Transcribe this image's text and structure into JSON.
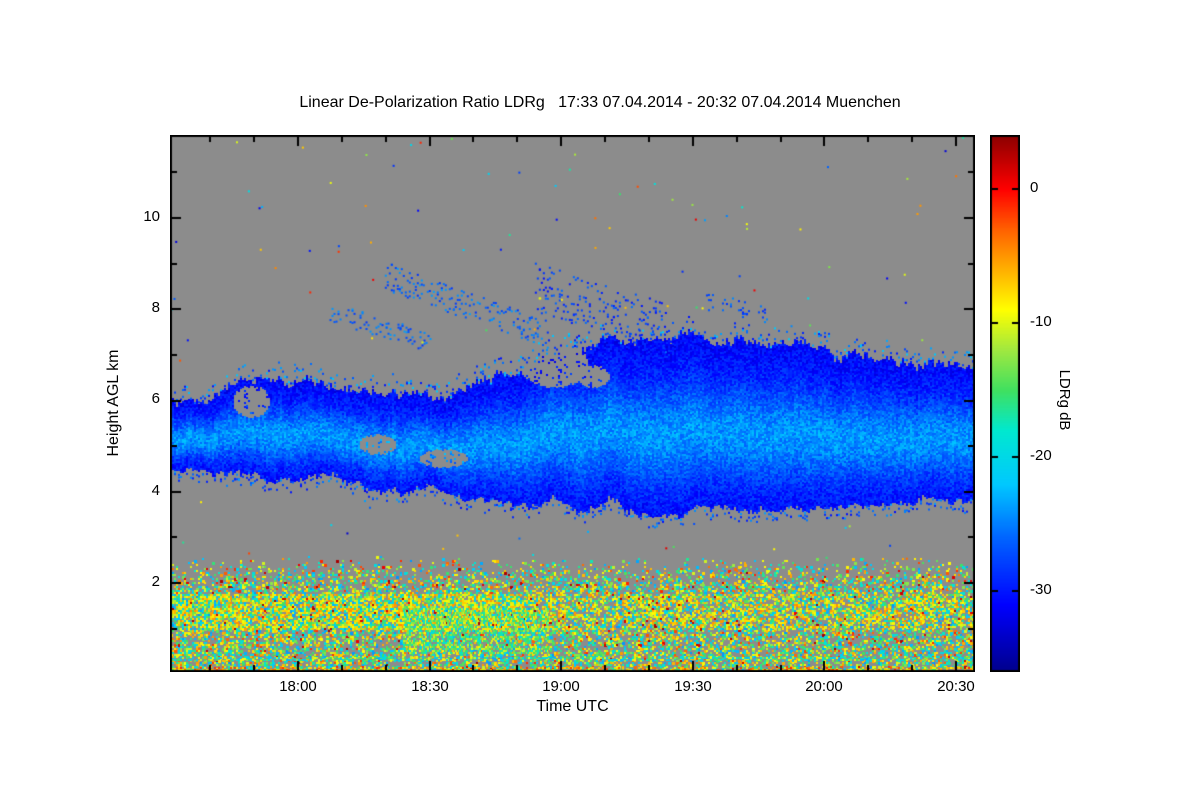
{
  "title": "Linear De-Polarization Ratio LDRg   17:33 07.04.2014 - 20:32 07.04.2014 Muenchen",
  "axes": {
    "x_label": "Time UTC",
    "y_label": "Height AGL km",
    "x_tick_labels": [
      "18:00",
      "18:30",
      "19:00",
      "19:30",
      "20:00",
      "20:30"
    ],
    "y_tick_labels": [
      "2",
      "4",
      "6",
      "8",
      "10"
    ]
  },
  "colorbar": {
    "label": "LDRg dB",
    "tick_labels": [
      "0",
      "-10",
      "-20",
      "-30"
    ]
  },
  "chart_data": {
    "type": "heatmap",
    "title": "Linear De-Polarization Ratio LDRg",
    "station": "Muenchen",
    "time_start": "17:33 07.04.2014",
    "time_end": "20:32 07.04.2014",
    "x_axis": {
      "label": "Time UTC",
      "tick_hours": [
        18.0,
        18.5,
        19.0,
        19.5,
        20.0,
        20.5
      ],
      "tick_labels": [
        "18:00",
        "18:30",
        "19:00",
        "19:30",
        "20:00",
        "20:30"
      ],
      "domain_hours": [
        17.514,
        20.572
      ]
    },
    "y_axis": {
      "label": "Height AGL km",
      "ticks": [
        2,
        4,
        6,
        8,
        10
      ],
      "range_km": [
        0.05,
        11.82
      ]
    },
    "value_axis": {
      "label": "LDRg dB",
      "ticks": [
        0,
        -10,
        -20,
        -30
      ],
      "range_db": [
        -36,
        4
      ]
    },
    "no_data_color": "#8c8c8c",
    "colormap": [
      {
        "v": -36,
        "color": "#00008b"
      },
      {
        "v": -31,
        "color": "#0000ff"
      },
      {
        "v": -26,
        "color": "#0064ff"
      },
      {
        "v": -22,
        "color": "#00c8ff"
      },
      {
        "v": -18,
        "color": "#00e8d0"
      },
      {
        "v": -15,
        "color": "#40e060"
      },
      {
        "v": -12,
        "color": "#a0e840"
      },
      {
        "v": -9,
        "color": "#ffff00"
      },
      {
        "v": -6,
        "color": "#ffb000"
      },
      {
        "v": -3,
        "color": "#ff6000"
      },
      {
        "v": 0,
        "color": "#ff0000"
      },
      {
        "v": 4,
        "color": "#8b0000"
      }
    ],
    "features": {
      "cloud_band": {
        "description": "Mid-level ice cloud layer between ~3.7 and ~7.5 km, LDRg about -24 to -33 dB (blue)",
        "ldr_mean_db": -28,
        "points": [
          {
            "t": 17.51,
            "base": 4.5,
            "top": 5.9
          },
          {
            "t": 17.7,
            "base": 4.35,
            "top": 6.35
          },
          {
            "t": 17.85,
            "base": 4.3,
            "top": 6.9
          },
          {
            "t": 18.05,
            "base": 4.2,
            "top": 6.6
          },
          {
            "t": 18.3,
            "base": 4.05,
            "top": 6.5
          },
          {
            "t": 18.55,
            "base": 3.9,
            "top": 6.35
          },
          {
            "t": 18.8,
            "base": 3.8,
            "top": 6.9
          },
          {
            "t": 19.05,
            "base": 3.75,
            "top": 7.35
          },
          {
            "t": 19.35,
            "base": 3.75,
            "top": 7.5
          },
          {
            "t": 19.65,
            "base": 3.85,
            "top": 7.3
          },
          {
            "t": 19.95,
            "base": 3.9,
            "top": 7.05
          },
          {
            "t": 20.25,
            "base": 4.0,
            "top": 6.85
          },
          {
            "t": 20.58,
            "base": 4.1,
            "top": 6.65
          }
        ],
        "holes": [
          {
            "t": 17.82,
            "h": 6.0,
            "rt": 0.07,
            "rh": 0.35
          },
          {
            "t": 18.3,
            "h": 5.05,
            "rt": 0.07,
            "rh": 0.22
          },
          {
            "t": 18.55,
            "h": 4.75,
            "rt": 0.09,
            "rh": 0.2
          },
          {
            "t": 18.97,
            "h": 6.8,
            "rt": 0.13,
            "rh": 0.5
          },
          {
            "t": 19.12,
            "h": 6.55,
            "rt": 0.06,
            "rh": 0.25
          }
        ]
      },
      "upper_wisps": [
        {
          "t0": 18.33,
          "t1": 18.95,
          "h0": 8.75,
          "h1": 7.45,
          "thickness": 0.3,
          "ldr": -26,
          "density": 0.5
        },
        {
          "t0": 18.9,
          "t1": 19.4,
          "h0": 8.5,
          "h1": 7.6,
          "thickness": 0.55,
          "ldr": -28,
          "density": 0.65
        },
        {
          "t0": 18.12,
          "t1": 18.5,
          "h0": 7.95,
          "h1": 7.3,
          "thickness": 0.22,
          "ldr": -26,
          "density": 0.4
        },
        {
          "t0": 19.55,
          "t1": 19.78,
          "h0": 8.2,
          "h1": 7.9,
          "thickness": 0.2,
          "ldr": -27,
          "density": 0.35
        }
      ],
      "boundary_layer": {
        "description": "Noisy boundary-layer returns below ~2.3 km, mixed LDRg -25 to 0 dB; orange band (~-5 to -12 dB) around 1.0-1.8 km strongest before 19:00",
        "top_km": 2.6
      },
      "green_patch": {
        "t0": 18.4,
        "t1": 18.95,
        "h0": 0.45,
        "h1": 1.45,
        "density": 0.45,
        "ldr": -14
      },
      "surface_stripes": [
        {
          "h": 0.38,
          "palette": "cool",
          "density": 0.92
        },
        {
          "h": 0.15,
          "palette": "warm",
          "density": 0.88
        }
      ],
      "scatter_speckles": {
        "density": 0.002,
        "description": "isolated colored noise pixels over gray no-data background"
      }
    }
  }
}
